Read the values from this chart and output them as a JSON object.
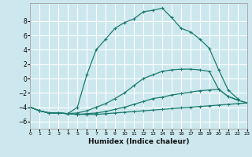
{
  "xlabel": "Humidex (Indice chaleur)",
  "bg_color": "#cce8ee",
  "grid_color": "#ffffff",
  "line_color": "#1a7a6e",
  "xlim": [
    0,
    23
  ],
  "ylim": [
    -7,
    10.5
  ],
  "yticks": [
    -6,
    -4,
    -2,
    0,
    2,
    4,
    6,
    8
  ],
  "xticks": [
    0,
    1,
    2,
    3,
    4,
    5,
    6,
    7,
    8,
    9,
    10,
    11,
    12,
    13,
    14,
    15,
    16,
    17,
    18,
    19,
    20,
    21,
    22,
    23
  ],
  "series": [
    {
      "x": [
        0,
        1,
        2,
        3,
        4,
        5,
        6,
        7,
        8,
        9,
        10,
        11,
        12,
        13,
        14,
        15,
        16,
        17,
        18,
        19,
        20,
        21,
        22,
        23
      ],
      "y": [
        -4.0,
        -4.5,
        -4.8,
        -4.8,
        -4.9,
        -5.0,
        -5.0,
        -5.0,
        -4.9,
        -4.8,
        -4.7,
        -4.6,
        -4.5,
        -4.4,
        -4.3,
        -4.2,
        -4.1,
        -4.0,
        -3.9,
        -3.8,
        -3.7,
        -3.6,
        -3.5,
        -3.4
      ]
    },
    {
      "x": [
        0,
        1,
        2,
        3,
        4,
        5,
        6,
        7,
        8,
        9,
        10,
        11,
        12,
        13,
        14,
        15,
        16,
        17,
        18,
        19,
        20,
        21,
        22,
        23
      ],
      "y": [
        -4.0,
        -4.5,
        -4.8,
        -4.8,
        -4.9,
        -5.0,
        -4.9,
        -4.8,
        -4.6,
        -4.3,
        -4.0,
        -3.6,
        -3.2,
        -2.8,
        -2.6,
        -2.3,
        -2.1,
        -1.9,
        -1.7,
        -1.6,
        -1.5,
        -2.5,
        -3.0,
        -3.4
      ]
    },
    {
      "x": [
        0,
        1,
        2,
        3,
        4,
        5,
        6,
        7,
        8,
        9,
        10,
        11,
        12,
        13,
        14,
        15,
        16,
        17,
        18,
        19,
        20,
        21,
        22,
        23
      ],
      "y": [
        -4.0,
        -4.5,
        -4.8,
        -4.8,
        -4.9,
        -4.8,
        -4.5,
        -4.0,
        -3.5,
        -2.8,
        -2.0,
        -1.0,
        0.0,
        0.5,
        1.0,
        1.2,
        1.3,
        1.3,
        1.2,
        1.0,
        -1.5,
        -2.5,
        -3.0,
        -3.4
      ]
    },
    {
      "x": [
        0,
        1,
        2,
        3,
        4,
        5,
        6,
        7,
        8,
        9,
        10,
        11,
        12,
        13,
        14,
        15,
        16,
        17,
        18,
        19,
        20,
        21,
        22
      ],
      "y": [
        -4.0,
        -4.5,
        -4.8,
        -4.8,
        -4.9,
        -4.0,
        0.5,
        4.0,
        5.5,
        7.0,
        7.8,
        8.3,
        9.3,
        9.5,
        9.8,
        8.5,
        7.0,
        6.5,
        5.5,
        4.2,
        1.2,
        -1.6,
        -2.8
      ]
    }
  ]
}
